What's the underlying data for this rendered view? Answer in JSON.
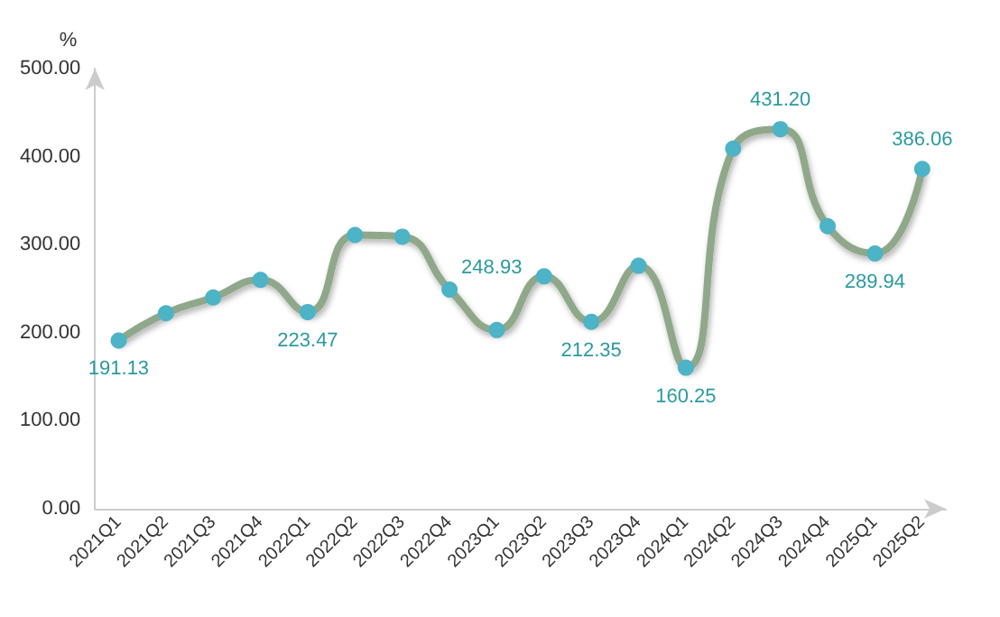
{
  "chart_data": {
    "type": "line",
    "ylabel": "%",
    "categories": [
      "2021Q1",
      "2021Q2",
      "2021Q3",
      "2021Q4",
      "2022Q1",
      "2022Q2",
      "2022Q3",
      "2022Q4",
      "2023Q1",
      "2023Q2",
      "2023Q3",
      "2023Q4",
      "2024Q1",
      "2024Q2",
      "2024Q3",
      "2024Q4",
      "2025Q1",
      "2025Q2"
    ],
    "series": [
      {
        "color": "#8fa88a",
        "values": [
          191.13,
          222,
          240,
          260,
          223.47,
          311,
          309,
          248.93,
          203,
          264,
          212.35,
          276,
          160.25,
          409,
          431.2,
          321,
          289.94,
          386.06
        ],
        "value_labels": [
          "191.13",
          null,
          null,
          null,
          "223.47",
          null,
          null,
          "248.93",
          null,
          null,
          "212.35",
          null,
          "160.25",
          null,
          "431.20",
          null,
          "289.94",
          "386.06"
        ]
      }
    ],
    "ylim": [
      0,
      500
    ],
    "yticks": [
      {
        "value": 0,
        "label": "0.00"
      },
      {
        "value": 100,
        "label": "100.00"
      },
      {
        "value": 200,
        "label": "200.00"
      },
      {
        "value": 300,
        "label": "300.00"
      },
      {
        "value": 400,
        "label": "400.00"
      },
      {
        "value": 500,
        "label": "500.00"
      }
    ],
    "grid": false,
    "marker": "circle",
    "line_style": "solid"
  }
}
